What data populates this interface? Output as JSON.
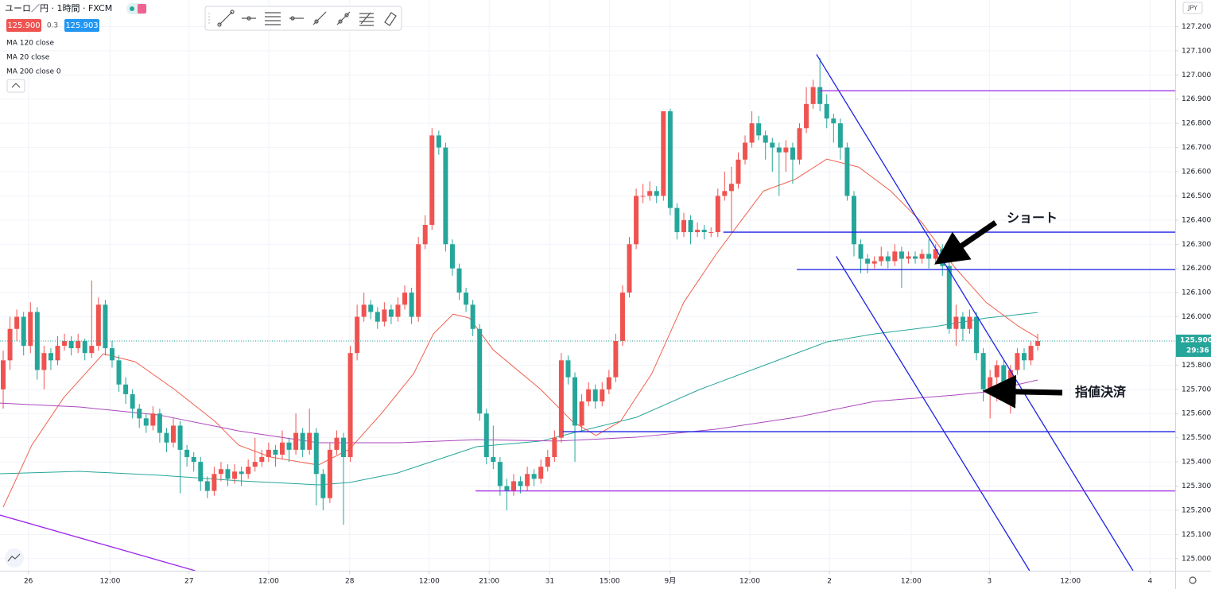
{
  "chart_data": {
    "type": "candlestick",
    "header": {
      "title": "ユーロ／円 · 1時間 · FXCM",
      "bid": "125.900",
      "spread": "0.3",
      "ask": "125.903",
      "currency": "JPY"
    },
    "up_color": "#ef5350",
    "down_color": "#26a69a",
    "xlim": [
      -0.47,
      172.2
    ],
    "ylim": [
      124.95,
      127.31
    ],
    "xticks": [
      {
        "value": 3.7,
        "label": "26"
      },
      {
        "value": 15.7,
        "label": "12:00"
      },
      {
        "value": 27.3,
        "label": "27"
      },
      {
        "value": 39.0,
        "label": "12:00"
      },
      {
        "value": 50.9,
        "label": "28"
      },
      {
        "value": 62.6,
        "label": "12:00"
      },
      {
        "value": 71.4,
        "label": "21:00"
      },
      {
        "value": 80.3,
        "label": "31"
      },
      {
        "value": 89.1,
        "label": "15:00"
      },
      {
        "value": 98.0,
        "label": "9月"
      },
      {
        "value": 109.7,
        "label": "12:00"
      },
      {
        "value": 121.4,
        "label": "2"
      },
      {
        "value": 133.4,
        "label": "12:00"
      },
      {
        "value": 144.9,
        "label": "3"
      },
      {
        "value": 156.8,
        "label": "12:00"
      },
      {
        "value": 168.5,
        "label": "4"
      }
    ],
    "yticks": [
      {
        "value": 125.0,
        "label": "125.000"
      },
      {
        "value": 125.1,
        "label": "125.100"
      },
      {
        "value": 125.2,
        "label": "125.200"
      },
      {
        "value": 125.3,
        "label": "125.300"
      },
      {
        "value": 125.4,
        "label": "125.400"
      },
      {
        "value": 125.5,
        "label": "125.500"
      },
      {
        "value": 125.6,
        "label": "125.600"
      },
      {
        "value": 125.7,
        "label": "125.700"
      },
      {
        "value": 125.8,
        "label": "125.800"
      },
      {
        "value": 125.9,
        "label": "125.900"
      },
      {
        "value": 126.0,
        "label": "126.000"
      },
      {
        "value": 126.1,
        "label": "126.100"
      },
      {
        "value": 126.2,
        "label": "126.200"
      },
      {
        "value": 126.3,
        "label": "126.300"
      },
      {
        "value": 126.4,
        "label": "126.400"
      },
      {
        "value": 126.5,
        "label": "126.500"
      },
      {
        "value": 126.6,
        "label": "126.600"
      },
      {
        "value": 126.7,
        "label": "126.700"
      },
      {
        "value": 126.8,
        "label": "126.800"
      },
      {
        "value": 126.9,
        "label": "126.900"
      },
      {
        "value": 127.0,
        "label": "127.000"
      },
      {
        "value": 127.1,
        "label": "127.100"
      },
      {
        "value": 127.2,
        "label": "127.200"
      }
    ],
    "grid": true,
    "last_price": {
      "value": 125.9,
      "label": "125.900",
      "countdown": "29:36"
    },
    "candles": [
      [
        125.7,
        125.86,
        125.62,
        125.82
      ],
      [
        125.82,
        126.0,
        125.78,
        125.95
      ],
      [
        125.95,
        126.03,
        125.9,
        126.0
      ],
      [
        126.0,
        126.02,
        125.84,
        125.88
      ],
      [
        125.88,
        126.06,
        125.85,
        126.02
      ],
      [
        126.02,
        126.04,
        125.74,
        125.78
      ],
      [
        125.78,
        125.88,
        125.7,
        125.85
      ],
      [
        125.85,
        125.87,
        125.78,
        125.82
      ],
      [
        125.82,
        125.92,
        125.8,
        125.88
      ],
      [
        125.88,
        125.93,
        125.86,
        125.9
      ],
      [
        125.9,
        125.92,
        125.84,
        125.87
      ],
      [
        125.87,
        125.93,
        125.85,
        125.9
      ],
      [
        125.9,
        125.91,
        125.82,
        125.85
      ],
      [
        125.85,
        126.15,
        125.83,
        125.88
      ],
      [
        125.88,
        126.08,
        125.86,
        126.05
      ],
      [
        126.05,
        126.07,
        125.84,
        125.87
      ],
      [
        125.87,
        125.9,
        125.79,
        125.82
      ],
      [
        125.82,
        125.84,
        125.69,
        125.72
      ],
      [
        125.72,
        125.75,
        125.64,
        125.68
      ],
      [
        125.68,
        125.7,
        125.58,
        125.62
      ],
      [
        125.62,
        125.64,
        125.54,
        125.58
      ],
      [
        125.58,
        125.6,
        125.52,
        125.55
      ],
      [
        125.55,
        125.63,
        125.53,
        125.6
      ],
      [
        125.6,
        125.62,
        125.48,
        125.52
      ],
      [
        125.52,
        125.54,
        125.44,
        125.48
      ],
      [
        125.48,
        125.58,
        125.46,
        125.55
      ],
      [
        125.55,
        125.57,
        125.27,
        125.45
      ],
      [
        125.45,
        125.47,
        125.38,
        125.42
      ],
      [
        125.42,
        125.44,
        125.36,
        125.4
      ],
      [
        125.4,
        125.42,
        125.28,
        125.32
      ],
      [
        125.32,
        125.34,
        125.25,
        125.28
      ],
      [
        125.28,
        125.38,
        125.26,
        125.35
      ],
      [
        125.35,
        125.4,
        125.32,
        125.37
      ],
      [
        125.37,
        125.39,
        125.3,
        125.33
      ],
      [
        125.33,
        125.39,
        125.31,
        125.36
      ],
      [
        125.36,
        125.38,
        125.3,
        125.35
      ],
      [
        125.35,
        125.41,
        125.33,
        125.38
      ],
      [
        125.38,
        125.5,
        125.36,
        125.4
      ],
      [
        125.4,
        125.45,
        125.38,
        125.42
      ],
      [
        125.42,
        125.48,
        125.4,
        125.45
      ],
      [
        125.45,
        125.47,
        125.38,
        125.43
      ],
      [
        125.43,
        125.53,
        125.41,
        125.48
      ],
      [
        125.48,
        125.5,
        125.4,
        125.45
      ],
      [
        125.45,
        125.6,
        125.43,
        125.52
      ],
      [
        125.52,
        125.54,
        125.42,
        125.45
      ],
      [
        125.45,
        125.62,
        125.43,
        125.52
      ],
      [
        125.52,
        125.54,
        125.22,
        125.35
      ],
      [
        125.35,
        125.37,
        125.2,
        125.25
      ],
      [
        125.25,
        125.48,
        125.23,
        125.45
      ],
      [
        125.45,
        125.53,
        125.43,
        125.5
      ],
      [
        125.5,
        125.52,
        125.14,
        125.42
      ],
      [
        125.42,
        125.88,
        125.4,
        125.85
      ],
      [
        125.85,
        126.05,
        125.82,
        126.0
      ],
      [
        126.0,
        126.1,
        125.98,
        126.05
      ],
      [
        126.05,
        126.07,
        125.99,
        126.02
      ],
      [
        126.02,
        126.04,
        125.95,
        125.98
      ],
      [
        125.98,
        126.06,
        125.96,
        126.03
      ],
      [
        126.03,
        126.05,
        125.97,
        126.0
      ],
      [
        126.0,
        126.08,
        125.98,
        126.05
      ],
      [
        126.05,
        126.13,
        126.03,
        126.1
      ],
      [
        126.1,
        126.12,
        125.97,
        126.0
      ],
      [
        126.0,
        126.33,
        125.98,
        126.3
      ],
      [
        126.3,
        126.42,
        126.28,
        126.38
      ],
      [
        126.38,
        126.78,
        126.36,
        126.75
      ],
      [
        126.75,
        126.77,
        126.67,
        126.7
      ],
      [
        126.7,
        126.72,
        126.27,
        126.3
      ],
      [
        126.3,
        126.32,
        126.17,
        126.2
      ],
      [
        126.2,
        126.22,
        126.07,
        126.1
      ],
      [
        126.1,
        126.12,
        126.02,
        126.05
      ],
      [
        126.05,
        126.07,
        125.92,
        125.95
      ],
      [
        125.95,
        125.97,
        125.57,
        125.6
      ],
      [
        125.6,
        125.62,
        125.39,
        125.42
      ],
      [
        125.42,
        125.55,
        125.37,
        125.4
      ],
      [
        125.4,
        125.42,
        125.26,
        125.3
      ],
      [
        125.3,
        125.33,
        125.2,
        125.28
      ],
      [
        125.28,
        125.35,
        125.26,
        125.32
      ],
      [
        125.32,
        125.34,
        125.27,
        125.3
      ],
      [
        125.3,
        125.38,
        125.28,
        125.35
      ],
      [
        125.35,
        125.37,
        125.3,
        125.33
      ],
      [
        125.33,
        125.41,
        125.31,
        125.38
      ],
      [
        125.38,
        125.45,
        125.36,
        125.42
      ],
      [
        125.42,
        125.53,
        125.4,
        125.5
      ],
      [
        125.5,
        125.85,
        125.48,
        125.82
      ],
      [
        125.82,
        125.84,
        125.72,
        125.75
      ],
      [
        125.75,
        125.77,
        125.4,
        125.55
      ],
      [
        125.55,
        125.68,
        125.53,
        125.65
      ],
      [
        125.65,
        125.73,
        125.63,
        125.7
      ],
      [
        125.7,
        125.72,
        125.62,
        125.65
      ],
      [
        125.65,
        125.73,
        125.63,
        125.7
      ],
      [
        125.7,
        125.78,
        125.68,
        125.75
      ],
      [
        125.75,
        125.93,
        125.73,
        125.9
      ],
      [
        125.9,
        126.13,
        125.88,
        126.1
      ],
      [
        126.1,
        126.33,
        126.08,
        126.3
      ],
      [
        126.3,
        126.53,
        126.28,
        126.5
      ],
      [
        126.5,
        126.55,
        126.47,
        126.5
      ],
      [
        126.5,
        126.56,
        126.48,
        126.52
      ],
      [
        126.52,
        126.54,
        126.47,
        126.5
      ],
      [
        126.5,
        126.85,
        126.48,
        126.85
      ],
      [
        126.85,
        126.86,
        126.42,
        126.45
      ],
      [
        126.45,
        126.47,
        126.32,
        126.35
      ],
      [
        126.35,
        126.43,
        126.33,
        126.4
      ],
      [
        126.4,
        126.42,
        126.3,
        126.35
      ],
      [
        126.35,
        126.39,
        126.33,
        126.36
      ],
      [
        126.36,
        126.38,
        126.32,
        126.35
      ],
      [
        126.35,
        126.37,
        126.33,
        126.35
      ],
      [
        126.35,
        126.53,
        126.33,
        126.5
      ],
      [
        126.5,
        126.6,
        126.48,
        126.52
      ],
      [
        126.52,
        126.62,
        126.35,
        126.55
      ],
      [
        126.55,
        126.68,
        126.53,
        126.65
      ],
      [
        126.65,
        126.75,
        126.63,
        126.72
      ],
      [
        126.72,
        126.85,
        126.7,
        126.8
      ],
      [
        126.8,
        126.83,
        126.73,
        126.75
      ],
      [
        126.75,
        126.77,
        126.65,
        126.72
      ],
      [
        126.72,
        126.74,
        126.6,
        126.7
      ],
      [
        126.7,
        126.72,
        126.5,
        126.68
      ],
      [
        126.68,
        126.73,
        126.6,
        126.7
      ],
      [
        126.7,
        126.72,
        126.55,
        126.65
      ],
      [
        126.65,
        126.8,
        126.63,
        126.78
      ],
      [
        126.78,
        126.95,
        126.76,
        126.88
      ],
      [
        126.88,
        126.98,
        126.86,
        126.95
      ],
      [
        126.95,
        127.07,
        126.85,
        126.88
      ],
      [
        126.88,
        126.92,
        126.78,
        126.82
      ],
      [
        126.82,
        126.84,
        126.72,
        126.8
      ],
      [
        126.8,
        126.82,
        126.65,
        126.7
      ],
      [
        126.7,
        126.72,
        126.48,
        126.5
      ],
      [
        126.5,
        126.52,
        126.25,
        126.3
      ],
      [
        126.3,
        126.32,
        126.18,
        126.24
      ],
      [
        126.24,
        126.26,
        126.18,
        126.22
      ],
      [
        126.22,
        126.25,
        126.2,
        126.23
      ],
      [
        126.23,
        126.29,
        126.21,
        126.25
      ],
      [
        126.25,
        126.27,
        126.2,
        126.23
      ],
      [
        126.23,
        126.3,
        126.21,
        126.27
      ],
      [
        126.27,
        126.29,
        126.12,
        126.24
      ],
      [
        126.24,
        126.27,
        126.22,
        126.25
      ],
      [
        126.25,
        126.27,
        126.22,
        126.24
      ],
      [
        126.24,
        126.28,
        126.22,
        126.26
      ],
      [
        126.26,
        126.32,
        126.2,
        126.24
      ],
      [
        126.24,
        126.3,
        126.22,
        126.28
      ],
      [
        126.28,
        126.3,
        126.17,
        126.21
      ],
      [
        126.21,
        126.23,
        125.93,
        125.95
      ],
      [
        125.95,
        126.05,
        125.88,
        126.0
      ],
      [
        126.0,
        126.02,
        125.9,
        125.95
      ],
      [
        125.95,
        126.03,
        125.93,
        126.0
      ],
      [
        126.0,
        126.02,
        125.82,
        125.85
      ],
      [
        125.85,
        125.87,
        125.65,
        125.7
      ],
      [
        125.7,
        125.78,
        125.58,
        125.75
      ],
      [
        125.75,
        125.82,
        125.65,
        125.8
      ],
      [
        125.8,
        125.82,
        125.7,
        125.73
      ],
      [
        125.73,
        125.8,
        125.6,
        125.78
      ],
      [
        125.78,
        125.87,
        125.76,
        125.85
      ],
      [
        125.85,
        125.87,
        125.78,
        125.82
      ],
      [
        125.82,
        125.9,
        125.8,
        125.88
      ],
      [
        125.88,
        125.93,
        125.86,
        125.9
      ]
    ],
    "series": [
      {
        "name": "MA 120 close",
        "color": "#26a69a",
        "x": [
          -0.5,
          11.2,
          22.9,
          34.6,
          46.3,
          50.9,
          57.9,
          65.0,
          69.6,
          79.0,
          83.6,
          93.0,
          102.3,
          111.7,
          121.0,
          128.0,
          137.4,
          144.4,
          152
        ],
        "values": [
          125.351,
          125.361,
          125.345,
          125.322,
          125.305,
          125.315,
          125.354,
          125.42,
          125.463,
          125.486,
          125.519,
          125.584,
          125.699,
          125.798,
          125.896,
          125.929,
          125.962,
          125.995,
          126.018
        ]
      },
      {
        "name": "MA 20 close",
        "color": "#f0614f",
        "x": [
          0,
          4.2,
          8.9,
          14.7,
          19.4,
          25.2,
          31.1,
          34.6,
          39.3,
          46.3,
          50.9,
          55.6,
          60.3,
          63.2,
          66.1,
          68.5,
          72.0,
          79.0,
          83.6,
          87.1,
          90.7,
          95.3,
          100.0,
          104.7,
          108.2,
          111.7,
          116.4,
          121.0,
          125.7,
          130.4,
          135.0,
          139.7,
          144.4,
          149.1,
          152
        ],
        "values": [
          125.213,
          125.469,
          125.666,
          125.847,
          125.814,
          125.699,
          125.568,
          125.469,
          125.42,
          125.387,
          125.453,
          125.601,
          125.765,
          125.929,
          126.011,
          125.995,
          125.863,
          125.699,
          125.568,
          125.509,
          125.568,
          125.765,
          126.06,
          126.257,
          126.389,
          126.52,
          126.569,
          126.652,
          126.619,
          126.52,
          126.389,
          126.208,
          126.06,
          125.962,
          125.913
        ]
      },
      {
        "name": "MA 200 close 0",
        "color": "#ab47bc",
        "x": [
          -0.5,
          11.2,
          22.9,
          34.6,
          46.3,
          57.9,
          69.6,
          81.3,
          93.0,
          104.7,
          116.4,
          128.0,
          139.7,
          144.4,
          152
        ],
        "values": [
          125.643,
          125.627,
          125.594,
          125.528,
          125.479,
          125.479,
          125.492,
          125.486,
          125.502,
          125.535,
          125.584,
          125.65,
          125.676,
          125.689,
          125.739
        ]
      }
    ],
    "drawings": [
      {
        "color": "#1e22e6",
        "x": [
          119.5,
          166.0
        ],
        "values": [
          127.085,
          124.95
        ]
      },
      {
        "color": "#1e22e6",
        "x": [
          122.4,
          150.8
        ],
        "values": [
          126.25,
          124.95
        ]
      },
      {
        "color": "#9c27e8",
        "x": [
          -0.47,
          28.2
        ],
        "values": [
          125.18,
          124.95
        ]
      },
      {
        "color": "#9c27e8",
        "x": [
          119.9,
          172.2
        ],
        "values": [
          126.935,
          126.935
        ]
      },
      {
        "color": "#1e22e6",
        "x": [
          105.8,
          172.2
        ],
        "values": [
          126.35,
          126.35
        ]
      },
      {
        "color": "#1e22e6",
        "x": [
          116.6,
          172.2
        ],
        "values": [
          126.195,
          126.195
        ]
      },
      {
        "color": "#1e22e6",
        "x": [
          82.2,
          172.2
        ],
        "values": [
          125.525,
          125.525
        ]
      },
      {
        "color": "#9c27e8",
        "x": [
          69.4,
          172.2
        ],
        "values": [
          125.28,
          125.28
        ]
      }
    ],
    "annotations": [
      "ショート",
      "指値決済"
    ]
  }
}
